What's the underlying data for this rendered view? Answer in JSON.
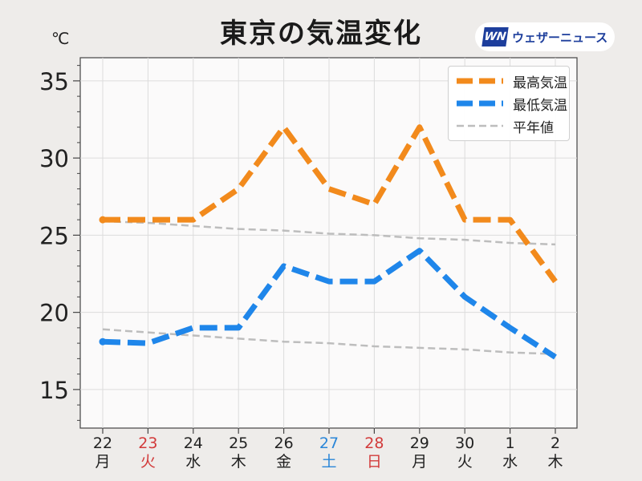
{
  "title": "東京の気温変化",
  "logo": {
    "mark": "WN",
    "text": "ウェザーニュース"
  },
  "unit": "℃",
  "chart_data": {
    "type": "line",
    "title": "東京の気温変化",
    "ylabel": "℃",
    "ylim": [
      12.5,
      36.5
    ],
    "yticks": [
      15,
      20,
      25,
      30,
      35
    ],
    "grid": true,
    "legend_position": "top-right",
    "categories": [
      {
        "day": "22",
        "weekday": "月",
        "color": "#222222"
      },
      {
        "day": "23",
        "weekday": "火",
        "color": "#d23a3a"
      },
      {
        "day": "24",
        "weekday": "水",
        "color": "#222222"
      },
      {
        "day": "25",
        "weekday": "木",
        "color": "#222222"
      },
      {
        "day": "26",
        "weekday": "金",
        "color": "#222222"
      },
      {
        "day": "27",
        "weekday": "土",
        "color": "#2a86d8"
      },
      {
        "day": "28",
        "weekday": "日",
        "color": "#d23a3a"
      },
      {
        "day": "29",
        "weekday": "月",
        "color": "#222222"
      },
      {
        "day": "30",
        "weekday": "火",
        "color": "#222222"
      },
      {
        "day": "1",
        "weekday": "水",
        "color": "#222222"
      },
      {
        "day": "2",
        "weekday": "木",
        "color": "#222222"
      }
    ],
    "series": [
      {
        "name": "最高気温",
        "color": "#f28a1c",
        "style": "dash-thick",
        "values": [
          26,
          26,
          26,
          28,
          32,
          28,
          27,
          32,
          26,
          26,
          22
        ]
      },
      {
        "name": "最低気温",
        "color": "#1f86ea",
        "style": "dash-thick",
        "values": [
          18.1,
          18,
          19,
          19,
          23,
          22,
          22,
          24,
          21,
          19,
          17.1
        ]
      },
      {
        "name": "平年値",
        "color": "#bdbdbd",
        "style": "dash-thin",
        "segments": [
          [
            25.9,
            25.8,
            25.6,
            25.4,
            25.3,
            25.1,
            25.0,
            24.8,
            24.7,
            24.5,
            24.4
          ],
          [
            18.9,
            18.7,
            18.5,
            18.3,
            18.1,
            18.0,
            17.8,
            17.7,
            17.6,
            17.4,
            17.3
          ]
        ]
      }
    ]
  }
}
